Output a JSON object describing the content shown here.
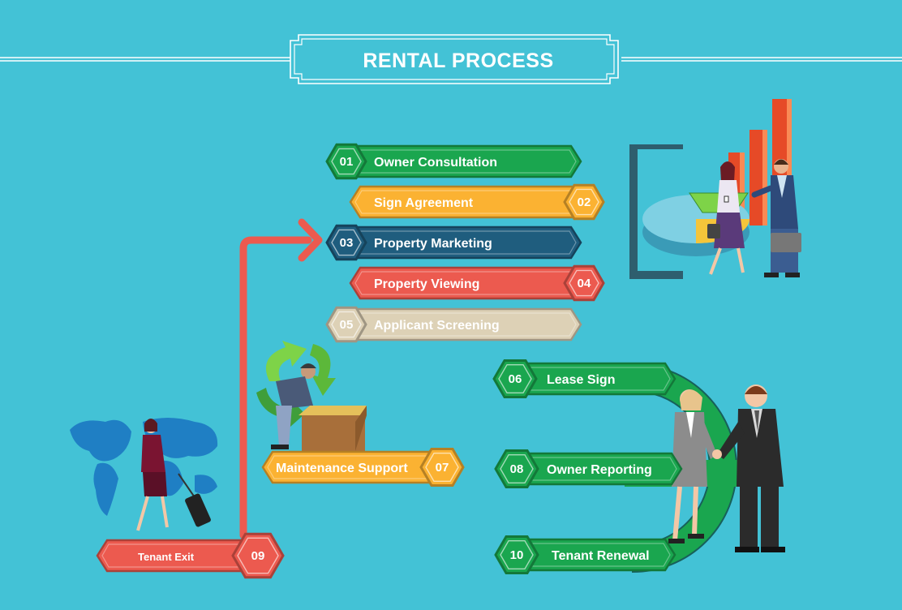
{
  "title": "RENTAL PROCESS",
  "steps": [
    {
      "num": "01",
      "label": "Owner Consultation",
      "color": "#1aa64f"
    },
    {
      "num": "02",
      "label": "Sign Agreement",
      "color": "#fbb232"
    },
    {
      "num": "03",
      "label": "Property Marketing",
      "color": "#1f5d7e"
    },
    {
      "num": "04",
      "label": "Property Viewing",
      "color": "#ec5a4f"
    },
    {
      "num": "05",
      "label": "Applicant Screening",
      "color": "#ddd1b6"
    },
    {
      "num": "06",
      "label": "Lease Sign",
      "color": "#1aa64f"
    },
    {
      "num": "07",
      "label": "Maintenance Support",
      "color": "#fbb232"
    },
    {
      "num": "08",
      "label": "Owner Reporting",
      "color": "#1aa64f"
    },
    {
      "num": "09",
      "label": "Tenant Exit",
      "color": "#ec5a4f"
    },
    {
      "num": "10",
      "label": "Tenant Renewal",
      "color": "#1aa64f"
    }
  ],
  "illustrations": [
    "business-chart-meeting",
    "recycling-worker-box",
    "world-map-traveler",
    "business-handshake"
  ]
}
